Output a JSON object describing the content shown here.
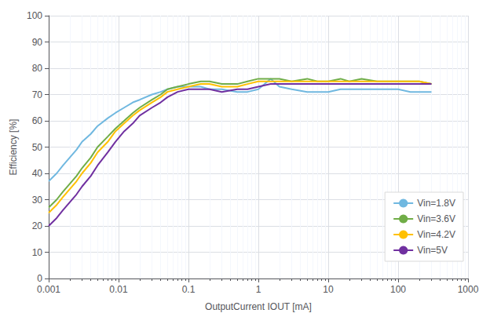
{
  "chart_data": {
    "type": "line",
    "xlabel": "OutputCurrent IOUT [mA]",
    "ylabel": "Efficiency [%]",
    "log": "x",
    "grid": true,
    "legend": "lower right",
    "xlim": [
      0.001,
      1000
    ],
    "xticks": [
      0.001,
      0.01,
      0.1,
      1,
      10,
      100,
      1000
    ],
    "ylim": [
      0,
      100
    ],
    "yticks": [
      0,
      10,
      20,
      30,
      40,
      50,
      60,
      70,
      80,
      90,
      100
    ],
    "x": [
      0.001,
      0.0013,
      0.0016,
      0.002,
      0.0025,
      0.003,
      0.004,
      0.005,
      0.007,
      0.009,
      0.012,
      0.016,
      0.02,
      0.03,
      0.04,
      0.05,
      0.07,
      0.1,
      0.15,
      0.2,
      0.3,
      0.5,
      0.7,
      1.0,
      1.5,
      2.0,
      3.0,
      5.0,
      7.0,
      10,
      15,
      20,
      30,
      50,
      70,
      100,
      150,
      200,
      300
    ],
    "series": [
      {
        "name": "Vin=1.8V",
        "color": "#70b8e0",
        "values": [
          37,
          40,
          43,
          46,
          49,
          52,
          55,
          58,
          61,
          63,
          65,
          67,
          68,
          70,
          71,
          72,
          73,
          73,
          73,
          72,
          72,
          71,
          71,
          72,
          76,
          73,
          72,
          71,
          71,
          71,
          72,
          72,
          72,
          72,
          72,
          72,
          71,
          71,
          71
        ]
      },
      {
        "name": "Vin=3.6V",
        "color": "#70ad47",
        "values": [
          27,
          30,
          33,
          36,
          39,
          42,
          46,
          50,
          54,
          57,
          60,
          63,
          65,
          68,
          70,
          72,
          73,
          74,
          75,
          75,
          74,
          74,
          75,
          76,
          76,
          76,
          75,
          76,
          75,
          75,
          76,
          75,
          76,
          75,
          75,
          75,
          75,
          75,
          74
        ]
      },
      {
        "name": "Vin=4.2V",
        "color": "#ffc000",
        "values": [
          25,
          28,
          31,
          34,
          37,
          40,
          44,
          48,
          52,
          56,
          59,
          62,
          64,
          67,
          69,
          71,
          72,
          73,
          74,
          74,
          73,
          73,
          74,
          75,
          75,
          75,
          75,
          75,
          75,
          75,
          75,
          75,
          75,
          75,
          75,
          75,
          75,
          75,
          74
        ]
      },
      {
        "name": "Vin=5V",
        "color": "#7030a0",
        "values": [
          20,
          23,
          26,
          29,
          32,
          35,
          39,
          43,
          48,
          52,
          56,
          59,
          62,
          65,
          67,
          69,
          71,
          72,
          72,
          72,
          71,
          72,
          72,
          73,
          74,
          74,
          74,
          74,
          74,
          74,
          74,
          74,
          74,
          74,
          74,
          74,
          74,
          74,
          74
        ]
      }
    ]
  }
}
